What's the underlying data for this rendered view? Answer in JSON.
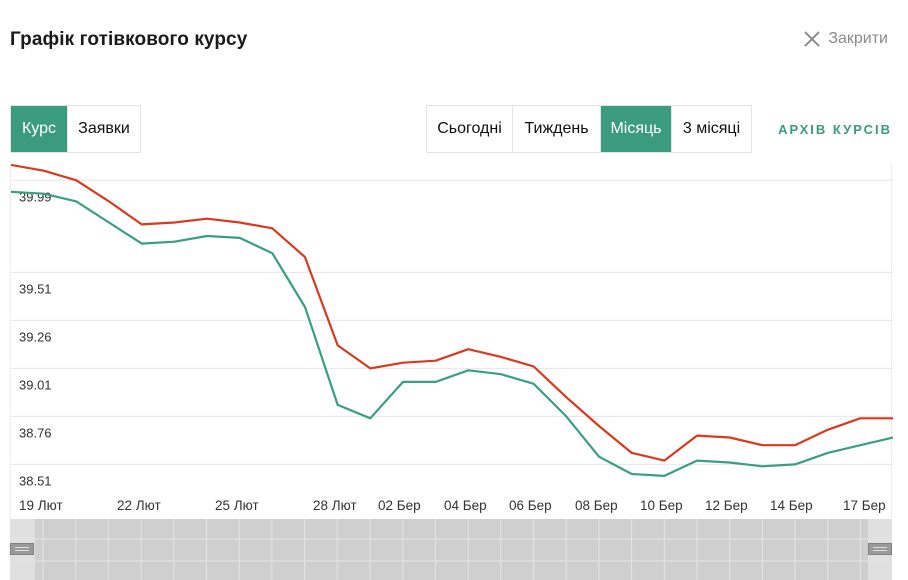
{
  "header": {
    "title": "Графік готівкового курсу",
    "close_label": "Закрити"
  },
  "mode_tabs": [
    {
      "label": "Курс",
      "active": true
    },
    {
      "label": "Заявки",
      "active": false
    }
  ],
  "period_tabs": [
    {
      "label": "Сьогодні",
      "active": false
    },
    {
      "label": "Тиждень",
      "active": false
    },
    {
      "label": "Місяць",
      "active": true
    },
    {
      "label": "3 місяці",
      "active": false
    }
  ],
  "archive_link": "АРХІВ КУРСІВ",
  "colors": {
    "accent": "#3b9b7e",
    "sell_line": "#d8391f",
    "buy_line": "#3a9e82"
  },
  "icons": {
    "close": "close-icon"
  },
  "chart_data": {
    "type": "line",
    "title": "",
    "xlabel": "",
    "ylabel": "",
    "ylim": [
      38.46,
      40.08
    ],
    "y_ticks": [
      "38.51",
      "38.76",
      "39.01",
      "39.26",
      "39.51",
      "39.99"
    ],
    "x_ticks": [
      "19 Лют",
      "22 Лют",
      "25 Лют",
      "28 Лют",
      "02 Бер",
      "04 Бер",
      "06 Бер",
      "08 Бер",
      "10 Бер",
      "12 Бер",
      "14 Бер",
      "17 Бер"
    ],
    "grid": true,
    "legend": "none",
    "series": [
      {
        "values": [
          40.07,
          40.04,
          39.99,
          39.88,
          39.76,
          39.77,
          39.79,
          39.77,
          39.74,
          39.59,
          39.13,
          39.01,
          39.04,
          39.05,
          39.11,
          39.07,
          39.02,
          38.86,
          38.71,
          38.57,
          38.53,
          38.66,
          38.65,
          38.61,
          38.61,
          38.69,
          38.75,
          38.75
        ]
      },
      {
        "values": [
          39.93,
          39.92,
          39.88,
          39.77,
          39.66,
          39.67,
          39.7,
          39.69,
          39.61,
          39.33,
          38.82,
          38.75,
          38.94,
          38.94,
          39.0,
          38.98,
          38.93,
          38.76,
          38.55,
          38.46,
          38.45,
          38.53,
          38.52,
          38.5,
          38.51,
          38.57,
          38.61,
          38.65
        ]
      }
    ]
  }
}
